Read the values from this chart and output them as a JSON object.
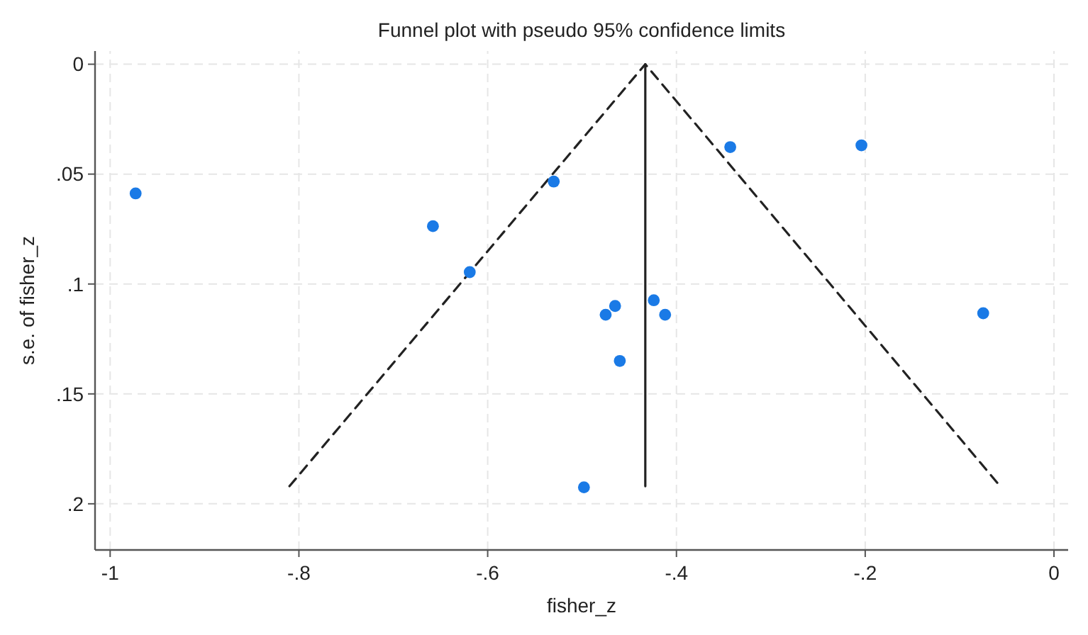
{
  "chart_data": {
    "type": "scatter",
    "title": "Funnel plot with pseudo 95% confidence limits",
    "xlabel": "fisher_z",
    "ylabel": "s.e. of fisher_z",
    "xlim": [
      -1.016,
      0.015
    ],
    "ylim": [
      0.221,
      -0.006
    ],
    "xticks": [
      -1,
      {
        "value": -0.8,
        "label": "-.8"
      },
      {
        "value": -0.6,
        "label": "-.6"
      },
      {
        "value": -0.4,
        "label": "-.4"
      },
      {
        "value": -0.2,
        "label": "-.2"
      },
      0
    ],
    "yticks": [
      0,
      {
        "value": 0.05,
        "label": ".05"
      },
      {
        "value": 0.1,
        "label": ".1"
      },
      {
        "value": 0.15,
        "label": ".15"
      },
      {
        "value": 0.2,
        "label": ".2"
      }
    ],
    "grid": true,
    "series": [
      {
        "type": "line",
        "color": "#222222",
        "line_style": "dashed",
        "marker": "none",
        "x": [
          -0.81,
          -0.433,
          -0.057
        ],
        "values": [
          0.192,
          0,
          0.192
        ]
      },
      {
        "type": "line",
        "color": "#222222",
        "line_style": "solid",
        "marker": "none",
        "x": [
          -0.433,
          -0.433
        ],
        "values": [
          0,
          0.192
        ]
      },
      {
        "color": "#1a7ae6",
        "marker": "circle",
        "x": [
          -0.973,
          -0.658,
          -0.619,
          -0.53,
          -0.343,
          -0.204,
          -0.465,
          -0.475,
          -0.424,
          -0.412,
          -0.46,
          -0.498,
          -0.075
        ],
        "values": [
          0.0588,
          0.0737,
          0.0946,
          0.0534,
          0.0377,
          0.0369,
          0.11,
          0.114,
          0.1074,
          0.114,
          0.135,
          0.1925,
          0.1133
        ]
      }
    ]
  }
}
